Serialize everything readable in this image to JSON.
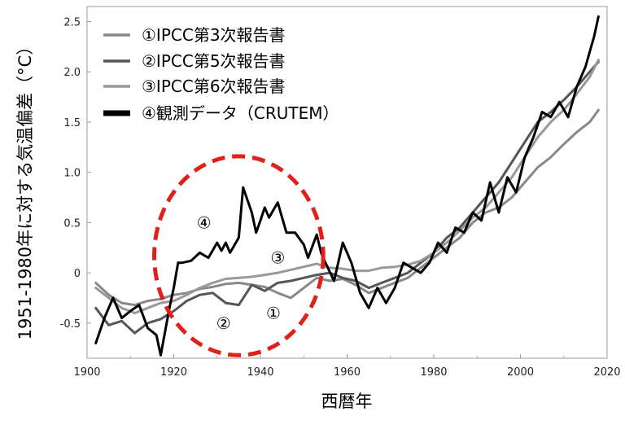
{
  "chart_data": {
    "type": "line",
    "xlabel": "西暦年",
    "ylabel": "1951-1980年に対する気温偏差（°C）",
    "xlim": [
      1900,
      2020
    ],
    "ylim": [
      -0.85,
      2.65
    ],
    "xticks": [
      "1900",
      "1920",
      "1940",
      "1960",
      "1980",
      "2000",
      "2020"
    ],
    "yticks": [
      "-0.5",
      "0",
      "0.5",
      "1.0",
      "1.5",
      "2.0",
      "2.5"
    ],
    "legend_position": "top-left",
    "series": [
      {
        "name": "①IPCC第3次報告書",
        "color": "#888888",
        "x": [
          1902,
          1905,
          1908,
          1911,
          1914,
          1917,
          1920,
          1923,
          1926,
          1929,
          1932,
          1935,
          1938,
          1941,
          1944,
          1947,
          1950,
          1953,
          1956,
          1959,
          1962,
          1965,
          1968,
          1971,
          1974,
          1977,
          1980,
          1983,
          1986,
          1989,
          1992,
          1995,
          1998,
          2001,
          2004,
          2007,
          2010,
          2013,
          2016,
          2018
        ],
        "y": [
          -0.1,
          -0.22,
          -0.3,
          -0.32,
          -0.28,
          -0.26,
          -0.22,
          -0.2,
          -0.16,
          -0.14,
          -0.11,
          -0.1,
          -0.12,
          -0.14,
          -0.2,
          -0.25,
          -0.15,
          -0.05,
          -0.08,
          -0.06,
          -0.12,
          -0.2,
          -0.15,
          -0.1,
          -0.05,
          0.05,
          0.15,
          0.25,
          0.35,
          0.5,
          0.6,
          0.65,
          0.75,
          0.9,
          1.05,
          1.15,
          1.28,
          1.4,
          1.5,
          1.62
        ]
      },
      {
        "name": "②IPCC第5次報告書",
        "color": "#555555",
        "x": [
          1902,
          1905,
          1908,
          1911,
          1914,
          1917,
          1920,
          1923,
          1926,
          1929,
          1932,
          1935,
          1938,
          1941,
          1944,
          1947,
          1950,
          1953,
          1956,
          1959,
          1962,
          1965,
          1968,
          1971,
          1974,
          1977,
          1980,
          1983,
          1986,
          1989,
          1992,
          1995,
          1998,
          2001,
          2004,
          2007,
          2010,
          2013,
          2016,
          2018
        ],
        "y": [
          -0.35,
          -0.52,
          -0.48,
          -0.6,
          -0.5,
          -0.46,
          -0.38,
          -0.28,
          -0.22,
          -0.2,
          -0.3,
          -0.32,
          -0.12,
          -0.18,
          -0.1,
          -0.08,
          -0.05,
          -0.02,
          0.0,
          -0.05,
          -0.08,
          -0.15,
          -0.1,
          -0.05,
          0.0,
          0.1,
          0.2,
          0.35,
          0.45,
          0.6,
          0.75,
          0.9,
          1.1,
          1.3,
          1.5,
          1.6,
          1.72,
          1.85,
          2.0,
          2.1
        ]
      },
      {
        "name": "③IPCC第6次報告書",
        "color": "#999999",
        "x": [
          1902,
          1905,
          1908,
          1911,
          1914,
          1917,
          1920,
          1923,
          1926,
          1929,
          1932,
          1935,
          1938,
          1941,
          1944,
          1947,
          1950,
          1953,
          1956,
          1959,
          1962,
          1965,
          1968,
          1971,
          1974,
          1977,
          1980,
          1983,
          1986,
          1989,
          1992,
          1995,
          1998,
          2001,
          2004,
          2007,
          2010,
          2013,
          2016,
          2018
        ],
        "y": [
          -0.15,
          -0.25,
          -0.35,
          -0.4,
          -0.35,
          -0.3,
          -0.28,
          -0.22,
          -0.15,
          -0.1,
          -0.06,
          -0.05,
          -0.04,
          -0.02,
          0.0,
          0.03,
          0.06,
          0.09,
          0.05,
          0.04,
          0.02,
          0.02,
          0.05,
          0.06,
          0.08,
          0.12,
          0.2,
          0.3,
          0.42,
          0.55,
          0.65,
          0.8,
          0.95,
          1.15,
          1.35,
          1.5,
          1.62,
          1.78,
          1.95,
          2.12
        ]
      },
      {
        "name": "④観測データ（CRUTEM）",
        "color": "#000000",
        "x": [
          1902,
          1904,
          1906,
          1908,
          1910,
          1912,
          1914,
          1916,
          1917,
          1919,
          1920,
          1921,
          1922,
          1924,
          1926,
          1928,
          1930,
          1931,
          1932,
          1933,
          1935,
          1936,
          1938,
          1939,
          1940,
          1941,
          1942,
          1944,
          1945,
          1946,
          1948,
          1950,
          1951,
          1953,
          1954,
          1955,
          1957,
          1959,
          1961,
          1963,
          1965,
          1967,
          1969,
          1971,
          1973,
          1975,
          1977,
          1979,
          1981,
          1983,
          1985,
          1987,
          1989,
          1991,
          1993,
          1995,
          1997,
          1999,
          2001,
          2003,
          2005,
          2007,
          2009,
          2011,
          2013,
          2015,
          2016,
          2017,
          2018
        ],
        "y": [
          -0.7,
          -0.45,
          -0.25,
          -0.45,
          -0.38,
          -0.32,
          -0.55,
          -0.62,
          -0.82,
          -0.35,
          -0.15,
          0.1,
          0.1,
          0.12,
          0.2,
          0.15,
          0.3,
          0.22,
          0.3,
          0.2,
          0.35,
          0.85,
          0.6,
          0.4,
          0.52,
          0.65,
          0.55,
          0.7,
          0.55,
          0.4,
          0.4,
          0.28,
          0.15,
          0.38,
          0.2,
          0.1,
          -0.08,
          0.3,
          0.1,
          -0.2,
          -0.35,
          -0.15,
          -0.3,
          -0.15,
          0.1,
          0.05,
          0.0,
          0.1,
          0.3,
          0.2,
          0.45,
          0.4,
          0.6,
          0.52,
          0.9,
          0.6,
          0.95,
          0.8,
          1.15,
          1.35,
          1.6,
          1.55,
          1.7,
          1.55,
          1.85,
          2.05,
          2.2,
          2.35,
          2.55
        ]
      }
    ],
    "annotations": [
      {
        "label": "④",
        "x": 1927,
        "y": 0.5
      },
      {
        "label": "③",
        "x": 1944,
        "y": 0.15
      },
      {
        "label": "②",
        "x": 1931.5,
        "y": -0.5
      },
      {
        "label": "①",
        "x": 1943,
        "y": -0.4
      }
    ],
    "highlight_circle": {
      "center_x": 1935,
      "center_y": 0.17,
      "radius_x": 19.5,
      "radius_y": 0.99,
      "color": "#e0201a"
    }
  }
}
